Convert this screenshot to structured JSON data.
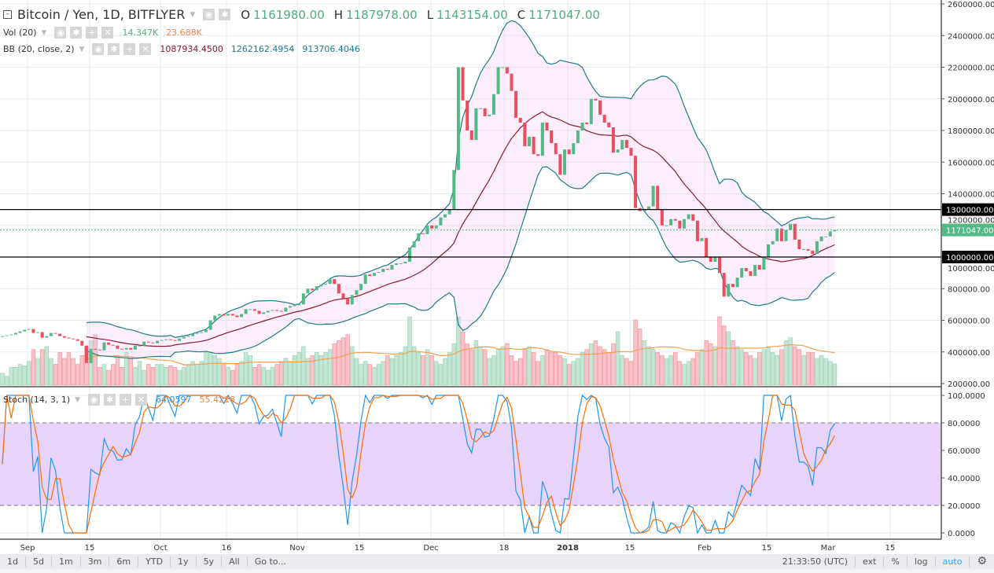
{
  "header": {
    "symbol": "Bitcoin / Yen, 1D, BITFLYER",
    "o_label": "O",
    "o": "1161980.00",
    "h_label": "H",
    "h": "1187978.00",
    "l_label": "L",
    "l": "1143154.00",
    "c_label": "C",
    "c": "1171047.00"
  },
  "vol_legend": {
    "name": "Vol (20)",
    "v1": "14.347K",
    "v2": "23.688K"
  },
  "bb_legend": {
    "name": "BB (20, close, 2)",
    "basis": "1087934.4500",
    "upper": "1262162.4954",
    "lower": "913706.4046"
  },
  "stoch_legend": {
    "name": "Stoch (14, 3, 1)",
    "k": "64.0597",
    "d": "55.4218"
  },
  "colors": {
    "up": "#53b987",
    "down": "#eb4d5c",
    "bb_band": "#1b7c8c",
    "bb_basis": "#8b1a2b",
    "vol_ma": "#f7a04a",
    "stoch_k": "#2196f3",
    "stoch_d": "#ff6d00",
    "stoch_fill": "#e8d4fb"
  },
  "toolbar": {
    "left": [
      "1d",
      "5d",
      "1m",
      "3m",
      "6m",
      "YTD",
      "1y",
      "5y",
      "All",
      "Go to..."
    ],
    "time": "21:33:50 (UTC)",
    "right": [
      "ext",
      "%",
      "log",
      "auto"
    ],
    "settings_icon": "gear-icon"
  },
  "chart_data": {
    "type": "candlestick",
    "interval": "1D",
    "first_bar": "2017-08-26",
    "last_bar": "2018-03-02",
    "price_axis": {
      "ylim": [
        200000,
        2600000
      ],
      "ticks": [
        "2600000.00",
        "2400000.00",
        "2200000.00",
        "2000000.00",
        "1800000.00",
        "1600000.00",
        "1400000.00",
        "1200000.00",
        "1000000.00",
        "800000.00",
        "600000.00",
        "400000.00",
        "200000.00"
      ]
    },
    "stoch_axis": {
      "ylim": [
        0,
        100
      ],
      "ticks": [
        "100.0000",
        "80.0000",
        "60.0000",
        "40.0000",
        "20.0000",
        "0.0000"
      ],
      "bands": [
        80,
        20
      ]
    },
    "x_ticks": [
      "Sep",
      "15",
      "Oct",
      "16",
      "Nov",
      "15",
      "Dec",
      "18",
      "2018",
      "15",
      "Feb",
      "15",
      "Mar",
      "15"
    ],
    "horizontal_lines": [
      {
        "price": 1300000,
        "label": "1300000.00"
      },
      {
        "price": 1000000,
        "label": "1000000.00"
      }
    ],
    "last_price": {
      "price": 1171047,
      "label": "1171047.00"
    },
    "closes": [
      500000,
      505000,
      510000,
      520000,
      530000,
      540000,
      545000,
      520000,
      525000,
      490000,
      500000,
      520000,
      515000,
      500000,
      490000,
      485000,
      480000,
      470000,
      440000,
      330000,
      420000,
      415000,
      410000,
      460000,
      445000,
      440000,
      420000,
      415000,
      425000,
      415000,
      440000,
      440000,
      465000,
      460000,
      455000,
      470000,
      475000,
      480000,
      475000,
      470000,
      485000,
      495000,
      500000,
      515000,
      520000,
      525000,
      540000,
      600000,
      630000,
      640000,
      630000,
      640000,
      630000,
      620000,
      640000,
      670000,
      670000,
      660000,
      640000,
      650000,
      660000,
      665000,
      660000,
      655000,
      680000,
      690000,
      700000,
      700000,
      770000,
      800000,
      790000,
      815000,
      825000,
      830000,
      860000,
      830000,
      770000,
      740000,
      700000,
      760000,
      790000,
      830000,
      890000,
      880000,
      900000,
      905000,
      925000,
      920000,
      950000,
      960000,
      960000,
      970000,
      1060000,
      1100000,
      1150000,
      1145000,
      1200000,
      1180000,
      1200000,
      1250000,
      1270000,
      1300000,
      1550000,
      2200000,
      1990000,
      1800000,
      1740000,
      1940000,
      1940000,
      1890000,
      1900000,
      2030000,
      2200000,
      2200000,
      2160000,
      2050000,
      1880000,
      1850000,
      1700000,
      1760000,
      1650000,
      1640000,
      1850000,
      1800000,
      1720000,
      1650000,
      1520000,
      1680000,
      1650000,
      1720000,
      1800000,
      1850000,
      1840000,
      2000000,
      1990000,
      1900000,
      1850000,
      1820000,
      1660000,
      1680000,
      1740000,
      1690000,
      1640000,
      1310000,
      1290000,
      1300000,
      1320000,
      1450000,
      1300000,
      1200000,
      1200000,
      1240000,
      1230000,
      1180000,
      1240000,
      1270000,
      1230000,
      1100000,
      1120000,
      1000000,
      970000,
      1000000,
      900000,
      750000,
      830000,
      810000,
      870000,
      930000,
      910000,
      880000,
      950000,
      920000,
      1000000,
      1080000,
      1100000,
      1180000,
      1100000,
      1170000,
      1210000,
      1110000,
      1050000,
      1050000,
      1040000,
      1020000,
      1100000,
      1130000,
      1130000,
      1161980,
      1171047
    ],
    "volume_k": [
      8,
      6,
      12,
      12,
      14,
      13,
      16,
      24,
      18,
      24,
      26,
      18,
      14,
      22,
      18,
      22,
      18,
      14,
      20,
      26,
      30,
      34,
      12,
      14,
      10,
      14,
      20,
      12,
      22,
      18,
      12,
      16,
      10,
      14,
      12,
      14,
      14,
      12,
      13,
      12,
      10,
      12,
      14,
      16,
      14,
      16,
      22,
      22,
      20,
      18,
      14,
      12,
      10,
      14,
      16,
      22,
      20,
      12,
      14,
      12,
      10,
      12,
      14,
      16,
      18,
      16,
      20,
      22,
      26,
      18,
      20,
      22,
      20,
      22,
      24,
      28,
      30,
      32,
      34,
      26,
      18,
      14,
      16,
      14,
      12,
      14,
      16,
      20,
      18,
      20,
      22,
      26,
      46,
      26,
      22,
      20,
      24,
      20,
      16,
      14,
      18,
      22,
      28,
      46,
      36,
      28,
      24,
      30,
      26,
      24,
      18,
      20,
      24,
      26,
      28,
      20,
      16,
      18,
      24,
      26,
      22,
      16,
      20,
      24,
      22,
      22,
      20,
      18,
      14,
      16,
      18,
      22,
      24,
      28,
      30,
      26,
      24,
      22,
      28,
      36,
      20,
      18,
      16,
      44,
      38,
      30,
      26,
      24,
      22,
      20,
      18,
      20,
      22,
      16,
      14,
      16,
      18,
      22,
      24,
      30,
      28,
      26,
      46,
      40,
      36,
      30,
      26,
      24,
      22,
      20,
      18,
      22,
      24,
      26,
      22,
      20,
      24,
      30,
      32,
      26,
      24,
      20,
      22,
      22,
      18,
      20,
      18,
      16,
      14.347
    ]
  }
}
